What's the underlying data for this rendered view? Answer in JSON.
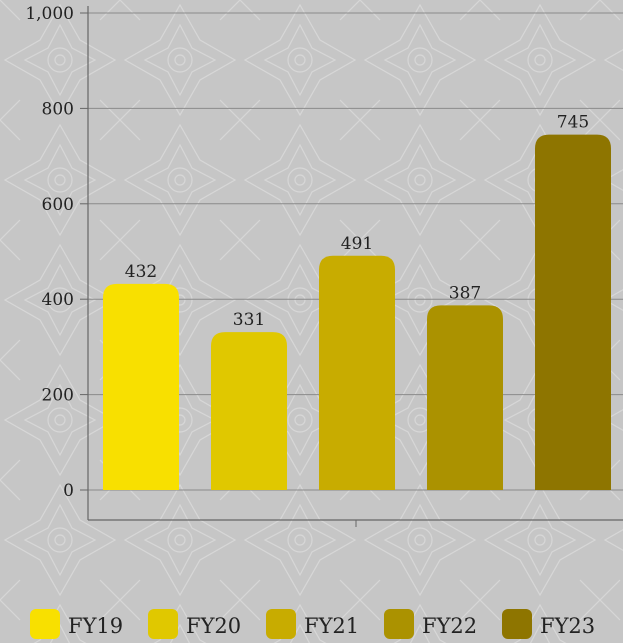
{
  "chart_data": {
    "type": "bar",
    "categories": [
      "FY19",
      "FY20",
      "FY21",
      "FY22",
      "FY23"
    ],
    "values": [
      432,
      331,
      491,
      387,
      745
    ],
    "value_labels": [
      "432",
      "331",
      "491",
      "387",
      "745"
    ],
    "colors": [
      "#f8e000",
      "#e0c800",
      "#c8ac00",
      "#ab9200",
      "#8e7500"
    ],
    "ylim": [
      0,
      1000
    ],
    "yticks": [
      0,
      200,
      400,
      600,
      800,
      1000
    ],
    "ytick_labels": [
      "0",
      "200",
      "400",
      "600",
      "800",
      "1,000"
    ],
    "grid": true,
    "legend_position": "bottom",
    "title": "",
    "xlabel": "",
    "ylabel": ""
  }
}
